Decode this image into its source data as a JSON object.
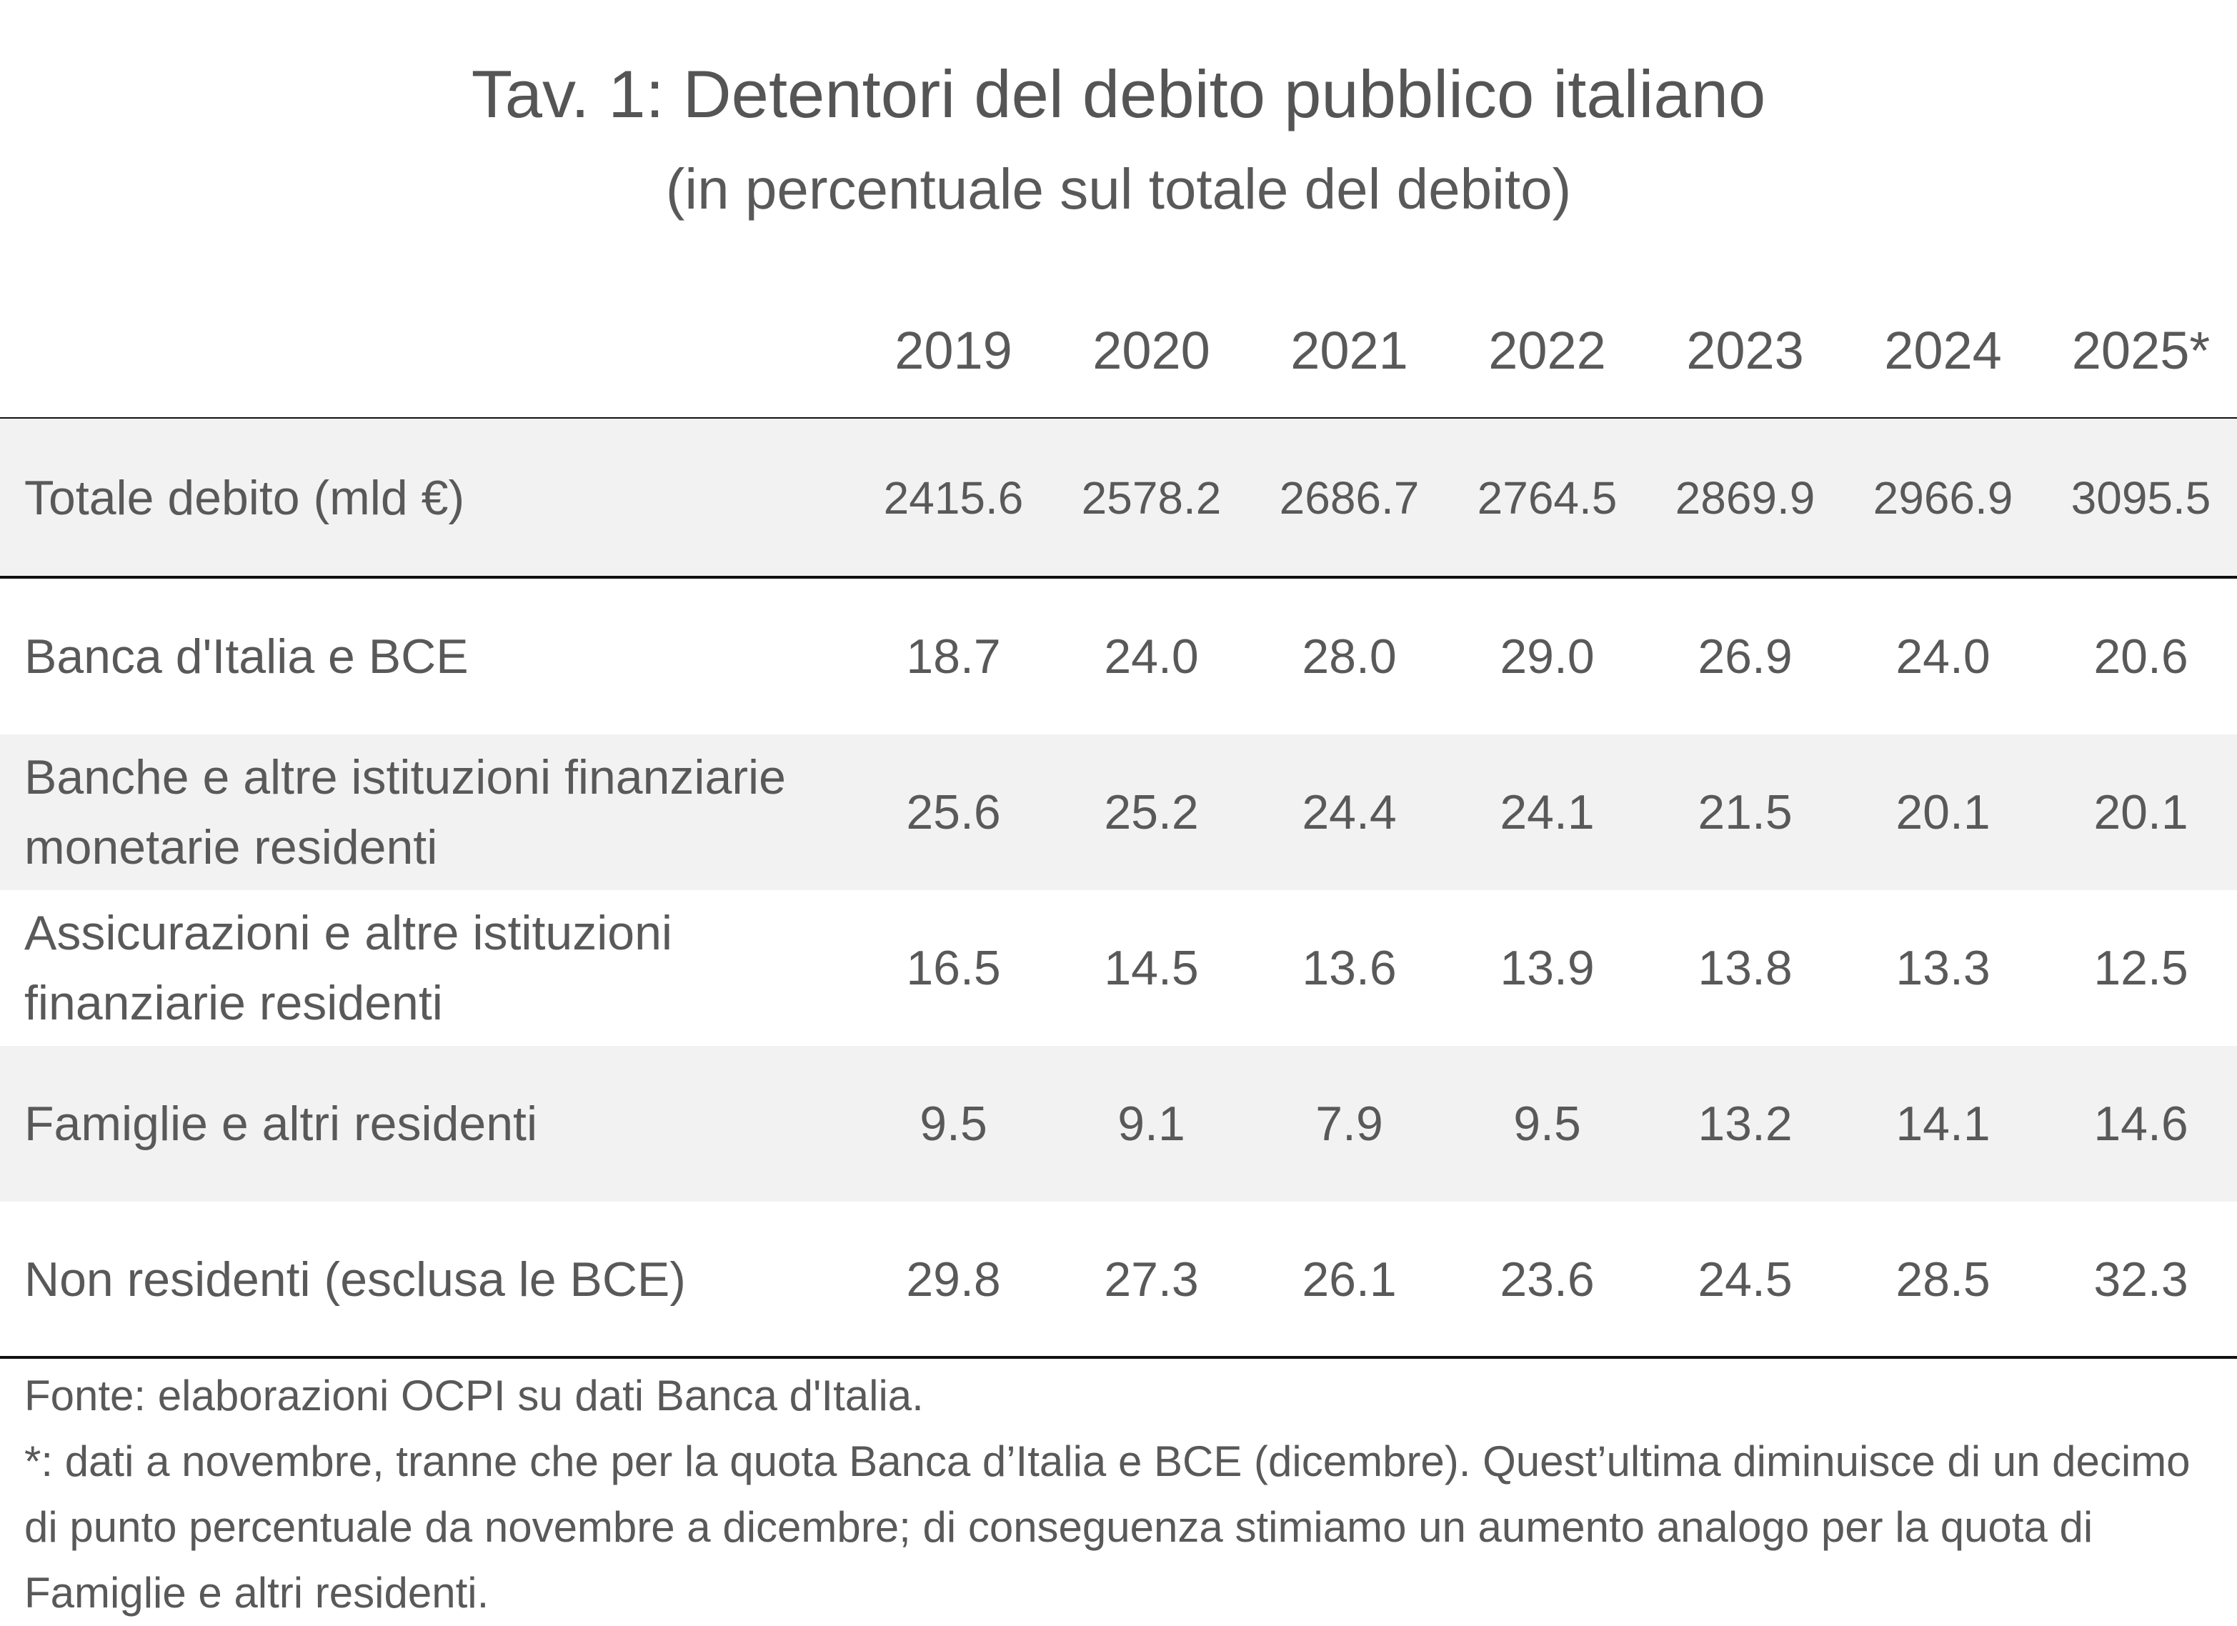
{
  "title": "Tav. 1: Detentori del debito pubblico italiano",
  "subtitle": "(in percentuale sul totale del debito)",
  "columns": [
    "2019",
    "2020",
    "2021",
    "2022",
    "2023",
    "2024",
    "2025*"
  ],
  "total": {
    "label": "Totale debito (mld €)",
    "values": [
      "2415.6",
      "2578.2",
      "2686.7",
      "2764.5",
      "2869.9",
      "2966.9",
      "3095.5"
    ]
  },
  "rows": [
    {
      "label": "Banca d'Italia e BCE",
      "values": [
        "18.7",
        "24.0",
        "28.0",
        "29.0",
        "26.9",
        "24.0",
        "20.6"
      ]
    },
    {
      "label": "Banche e altre istituzioni finanziarie monetarie residenti",
      "values": [
        "25.6",
        "25.2",
        "24.4",
        "24.1",
        "21.5",
        "20.1",
        "20.1"
      ]
    },
    {
      "label": "Assicurazioni e altre istituzioni finanziarie residenti",
      "values": [
        "16.5",
        "14.5",
        "13.6",
        "13.9",
        "13.8",
        "13.3",
        "12.5"
      ]
    },
    {
      "label": "Famiglie e altri residenti",
      "values": [
        "9.5",
        "9.1",
        "7.9",
        "9.5",
        "13.2",
        "14.1",
        "14.6"
      ]
    },
    {
      "label": "Non residenti (esclusa le BCE)",
      "values": [
        "29.8",
        "27.3",
        "26.1",
        "23.6",
        "24.5",
        "28.5",
        "32.3"
      ]
    }
  ],
  "footer": {
    "source": "Fonte: elaborazioni OCPI su dati Banca d'Italia.",
    "note": "*: dati a novembre, tranne che per la quota Banca d’Italia e BCE (dicembre). Quest’ultima diminuisce di un decimo di punto percentuale da novembre a dicembre; di conseguenza stimiamo un aumento analogo per la quota di Famiglie e altri residenti."
  }
}
